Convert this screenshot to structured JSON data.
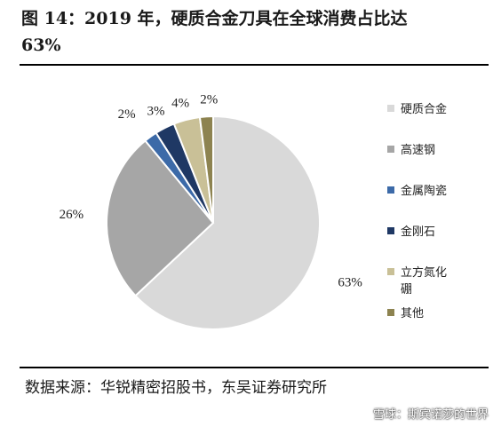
{
  "title_lines": [
    "图 14：2019 年，硬质合金刀具在全球消费占比达",
    "63%"
  ],
  "source": "数据来源：华锐精密招股书，东吴证券研究所",
  "watermark": "雪球：斯宾诺莎的世界",
  "chart_data": {
    "type": "pie",
    "title": "",
    "slices": [
      {
        "label": "硬质合金",
        "value": 63,
        "value_label": "63%",
        "color": "#d9d9d9"
      },
      {
        "label": "高速钢",
        "value": 26,
        "value_label": "26%",
        "color": "#a6a6a6"
      },
      {
        "label": "金属陶瓷",
        "value": 2,
        "value_label": "2%",
        "color": "#3c6aa8"
      },
      {
        "label": "金刚石",
        "value": 3,
        "value_label": "3%",
        "color": "#1f3864"
      },
      {
        "label": "立方氮化\n硼",
        "value": 4,
        "value_label": "4%",
        "color": "#c9c097"
      },
      {
        "label": "其他",
        "value": 2,
        "value_label": "2%",
        "color": "#8d8350"
      }
    ],
    "start_angle_deg": 0,
    "direction": "clockwise",
    "legend_position": "right"
  }
}
